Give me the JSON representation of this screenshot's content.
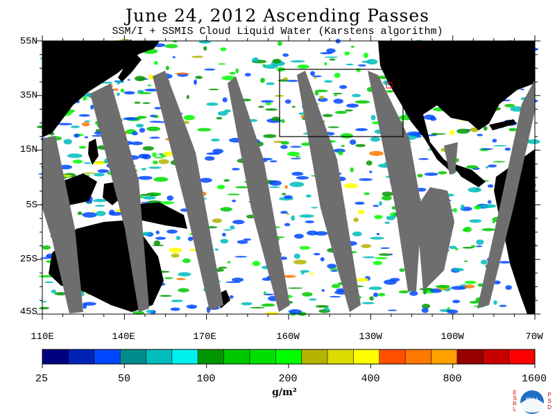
{
  "title": "June 24, 2012  Ascending Passes",
  "subtitle": "SSM/I + SSMIS Cloud Liquid Water (Karstens algorithm)",
  "map": {
    "lat_labels": [
      "55N",
      "35N",
      "15N",
      "5S",
      "25S",
      "45S"
    ],
    "lon_labels": [
      "110E",
      "140E",
      "170E",
      "160W",
      "130W",
      "100W",
      "70W"
    ],
    "colors": {
      "ocean": "#ffffff",
      "land": "#000000",
      "no_data_swath": "#6e6e6e",
      "highlight_box": "#000000",
      "small_box": "#ff0000"
    }
  },
  "colorbar": {
    "colors": [
      "#00007f",
      "#0022b4",
      "#0048ff",
      "#008c8c",
      "#00bcbc",
      "#00f0f0",
      "#009600",
      "#00c800",
      "#00e000",
      "#00ff00",
      "#b4b400",
      "#dcdc00",
      "#ffff00",
      "#ff5000",
      "#ff7800",
      "#ffa000",
      "#960000",
      "#c80000",
      "#ff0000"
    ],
    "tick_labels": [
      "25",
      "50",
      "100",
      "200",
      "400",
      "800",
      "1600"
    ],
    "unit": "g/m²"
  },
  "logo": {
    "left_letters": "ESRL",
    "right_letters": "PSD",
    "center": "NOAA"
  }
}
